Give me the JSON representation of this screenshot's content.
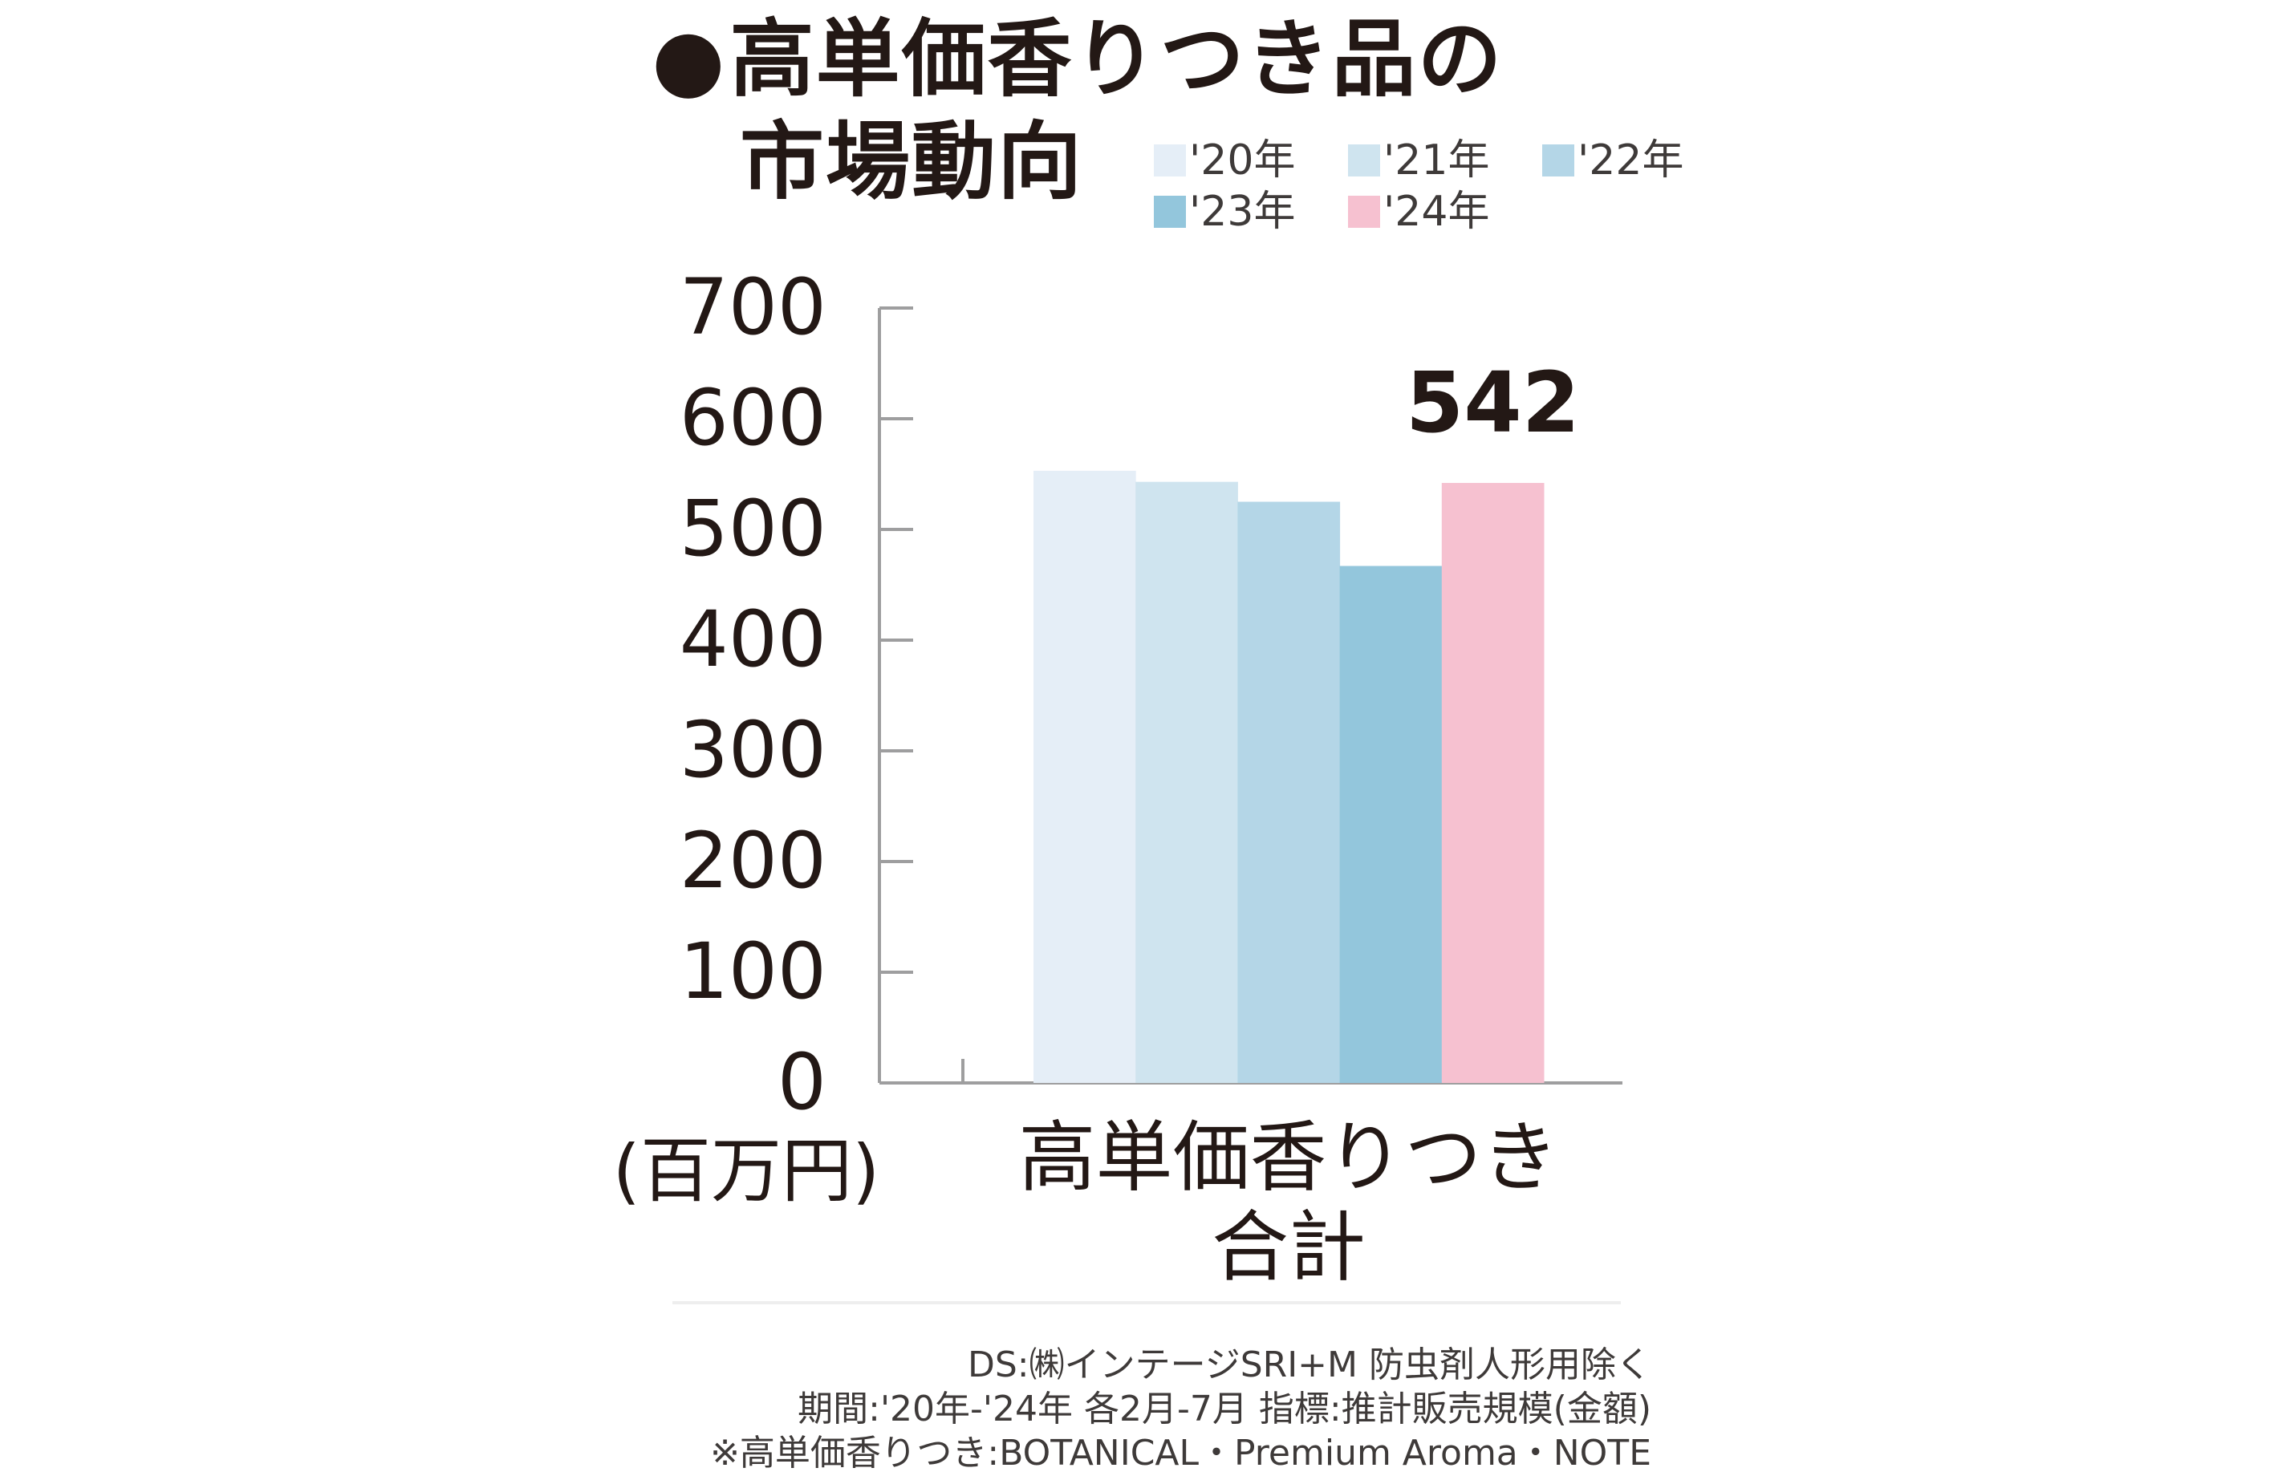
{
  "title": {
    "bullet": "●",
    "line1": "高単価香りつき品の",
    "line2": "市場動向"
  },
  "legend": [
    {
      "label": "'20年",
      "color": "#e5eef7"
    },
    {
      "label": "'21年",
      "color": "#cfe4ef"
    },
    {
      "label": "'22年",
      "color": "#b4d6e7"
    },
    {
      "label": "'23年",
      "color": "#93c6dc"
    },
    {
      "label": "'24年",
      "color": "#f6c1d0"
    }
  ],
  "chart_data": {
    "type": "bar",
    "categories": [
      "高単価香りつき合計"
    ],
    "category_label_lines": [
      "高単価香りつき",
      "合計"
    ],
    "series": [
      {
        "name": "'20年",
        "values": [
          553
        ],
        "color": "#e5eef7"
      },
      {
        "name": "'21年",
        "values": [
          543
        ],
        "color": "#cfe4ef"
      },
      {
        "name": "'22年",
        "values": [
          525
        ],
        "color": "#b4d6e7"
      },
      {
        "name": "'23年",
        "values": [
          467
        ],
        "color": "#93c6dc"
      },
      {
        "name": "'24年",
        "values": [
          542
        ],
        "color": "#f6c1d0"
      }
    ],
    "data_labels": [
      {
        "series": "'24年",
        "text": "542"
      }
    ],
    "y_ticks": [
      "0",
      "100",
      "200",
      "300",
      "400",
      "500",
      "600",
      "700"
    ],
    "ylim": [
      0,
      700
    ],
    "ylabel": "(百万円)",
    "grid": false,
    "legend_position": "top-right"
  },
  "source": {
    "line1": "DS:㈱インテージSRI+M 防虫剤人形用除く",
    "line2": "期間:'20年-'24年 各2月-7月 指標:推計販売規模(金額)",
    "line3": "※高単価香りつき:BOTANICAL・Premium Aroma・NOTE"
  }
}
